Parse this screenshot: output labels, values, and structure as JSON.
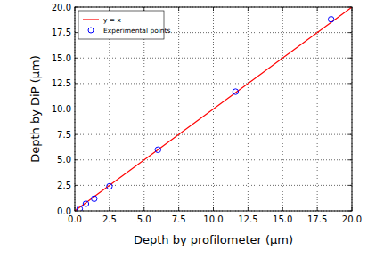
{
  "chart_data": {
    "type": "scatter",
    "x_label": "Depth by profilometer (µm)",
    "y_label": "Depth by DiP (µm)",
    "xlim": [
      0,
      20
    ],
    "ylim": [
      0,
      20
    ],
    "xticks": [
      {
        "value": 0,
        "label": "0.0"
      },
      {
        "value": 2.5,
        "label": "2.5"
      },
      {
        "value": 5,
        "label": "5.0"
      },
      {
        "value": 7.5,
        "label": "7.5"
      },
      {
        "value": 10,
        "label": "10.0"
      },
      {
        "value": 12.5,
        "label": "12.5"
      },
      {
        "value": 15,
        "label": "15.0"
      },
      {
        "value": 17.5,
        "label": "17.5"
      },
      {
        "value": 20,
        "label": "20.0"
      }
    ],
    "yticks": [
      {
        "value": 0,
        "label": "0.0"
      },
      {
        "value": 2.5,
        "label": "2.5"
      },
      {
        "value": 5,
        "label": "5.0"
      },
      {
        "value": 7.5,
        "label": "7.5"
      },
      {
        "value": 10,
        "label": "10.0"
      },
      {
        "value": 12.5,
        "label": "12.5"
      },
      {
        "value": 15,
        "label": "15.0"
      },
      {
        "value": 17.5,
        "label": "17.5"
      },
      {
        "value": 20,
        "label": "20.0"
      }
    ],
    "grid": true,
    "legend": "upper left",
    "series": [
      {
        "name": "y = x",
        "type": "line",
        "color": "#ff0000",
        "line_style": "solid",
        "x": [
          0,
          20
        ],
        "values": [
          0,
          20
        ]
      },
      {
        "name": "Experimental points",
        "type": "scatter",
        "color": "#0000ff",
        "marker": "circle",
        "x": [
          0.35,
          0.8,
          1.4,
          2.5,
          6.0,
          11.6,
          18.5
        ],
        "values": [
          0.2,
          0.7,
          1.2,
          2.4,
          6.0,
          11.7,
          18.8
        ]
      }
    ]
  }
}
